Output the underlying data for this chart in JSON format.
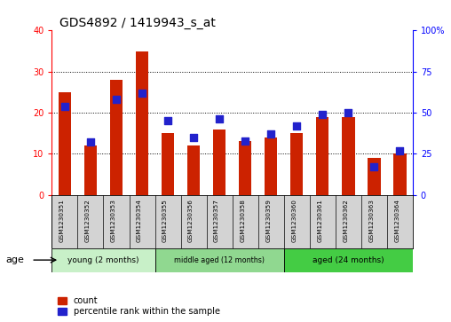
{
  "title": "GDS4892 / 1419943_s_at",
  "samples": [
    "GSM1230351",
    "GSM1230352",
    "GSM1230353",
    "GSM1230354",
    "GSM1230355",
    "GSM1230356",
    "GSM1230357",
    "GSM1230358",
    "GSM1230359",
    "GSM1230360",
    "GSM1230361",
    "GSM1230362",
    "GSM1230363",
    "GSM1230364"
  ],
  "counts": [
    25,
    12,
    28,
    35,
    15,
    12,
    16,
    13,
    14,
    15,
    19,
    19,
    9,
    10
  ],
  "percentiles": [
    54,
    32,
    58,
    62,
    45,
    35,
    46,
    33,
    37,
    42,
    49,
    50,
    17,
    27
  ],
  "ylim_left": [
    0,
    40
  ],
  "ylim_right": [
    0,
    100
  ],
  "yticks_left": [
    0,
    10,
    20,
    30,
    40
  ],
  "yticks_right": [
    0,
    25,
    50,
    75,
    100
  ],
  "groups": [
    {
      "label": "young (2 months)",
      "start": 0,
      "end": 4
    },
    {
      "label": "middle aged (12 months)",
      "start": 4,
      "end": 9
    },
    {
      "label": "aged (24 months)",
      "start": 9,
      "end": 14
    }
  ],
  "group_colors": [
    "#c8f0c8",
    "#90d890",
    "#44cc44"
  ],
  "bar_color_red": "#CC2200",
  "bar_color_blue": "#2222CC",
  "bar_width": 0.5,
  "bg_color": "#FFFFFF",
  "tick_area_color": "#D3D3D3",
  "grid_color": "#000000",
  "title_fontsize": 10,
  "tick_fontsize": 7,
  "legend_count_label": "count",
  "legend_pct_label": "percentile rank within the sample",
  "age_label": "age"
}
